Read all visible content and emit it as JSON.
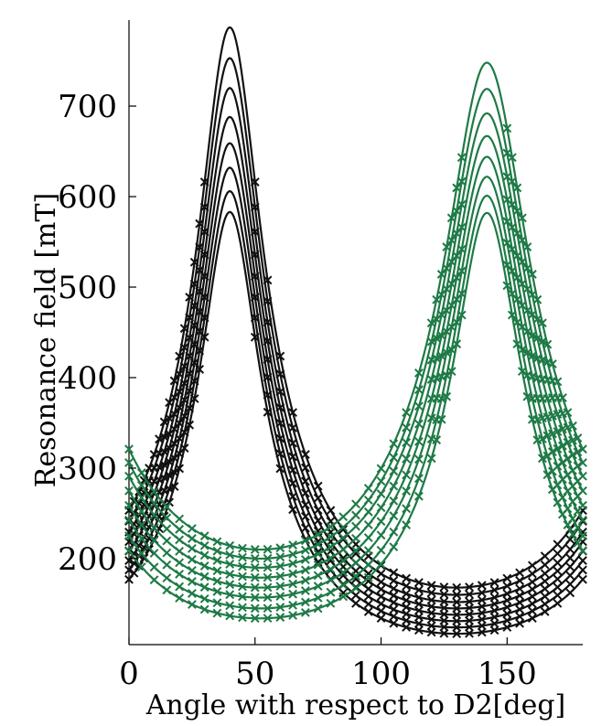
{
  "chart_data": {
    "type": "line",
    "title": "",
    "xlabel": "Angle with respect to D2[deg]",
    "ylabel": "Resonance field [mT]",
    "xlim": [
      0,
      180
    ],
    "ylim": [
      105,
      795
    ],
    "xticks": [
      0,
      50,
      100,
      150
    ],
    "xtick_labels": [
      "0",
      "50",
      "100",
      "150"
    ],
    "yticks": [
      200,
      300,
      400,
      500,
      600,
      700
    ],
    "ytick_labels": [
      "200",
      "300",
      "400",
      "500",
      "600",
      "700"
    ],
    "grid": false,
    "legend": "none",
    "colors": {
      "black": "#111111",
      "green": "#1e7a46"
    },
    "groups": [
      {
        "color_key": "black",
        "peak_angle": 40,
        "curves": [
          {
            "peak": 787,
            "min": 168
          },
          {
            "peak": 753,
            "min": 160
          },
          {
            "peak": 720,
            "min": 152
          },
          {
            "peak": 688,
            "min": 145
          },
          {
            "peak": 659,
            "min": 138
          },
          {
            "peak": 632,
            "min": 131
          },
          {
            "peak": 606,
            "min": 124
          },
          {
            "peak": 583,
            "min": 117
          }
        ],
        "marker_angles": [
          0,
          2,
          4,
          6,
          8,
          10,
          12,
          14,
          16,
          18,
          20,
          22,
          24,
          26,
          28,
          30,
          50,
          55,
          60,
          65,
          70,
          75,
          80,
          85,
          90,
          95,
          100,
          105,
          110,
          115,
          120,
          125,
          130,
          135,
          140,
          145,
          150,
          155,
          160,
          165,
          170,
          175,
          180
        ]
      },
      {
        "color_key": "green",
        "peak_angle": 142,
        "curves": [
          {
            "peak": 748,
            "min": 210
          },
          {
            "peak": 719,
            "min": 200
          },
          {
            "peak": 692,
            "min": 190
          },
          {
            "peak": 667,
            "min": 179
          },
          {
            "peak": 644,
            "min": 168
          },
          {
            "peak": 622,
            "min": 157
          },
          {
            "peak": 601,
            "min": 145
          },
          {
            "peak": 582,
            "min": 134
          }
        ],
        "marker_angles": [
          0,
          5,
          10,
          15,
          20,
          25,
          30,
          35,
          40,
          45,
          50,
          55,
          60,
          65,
          70,
          75,
          80,
          85,
          90,
          95,
          100,
          105,
          110,
          115,
          120,
          122,
          124,
          126,
          128,
          130,
          132,
          150,
          152,
          154,
          156,
          158,
          160,
          162,
          164,
          166,
          168,
          170,
          172,
          174,
          176,
          178,
          180
        ]
      }
    ]
  }
}
